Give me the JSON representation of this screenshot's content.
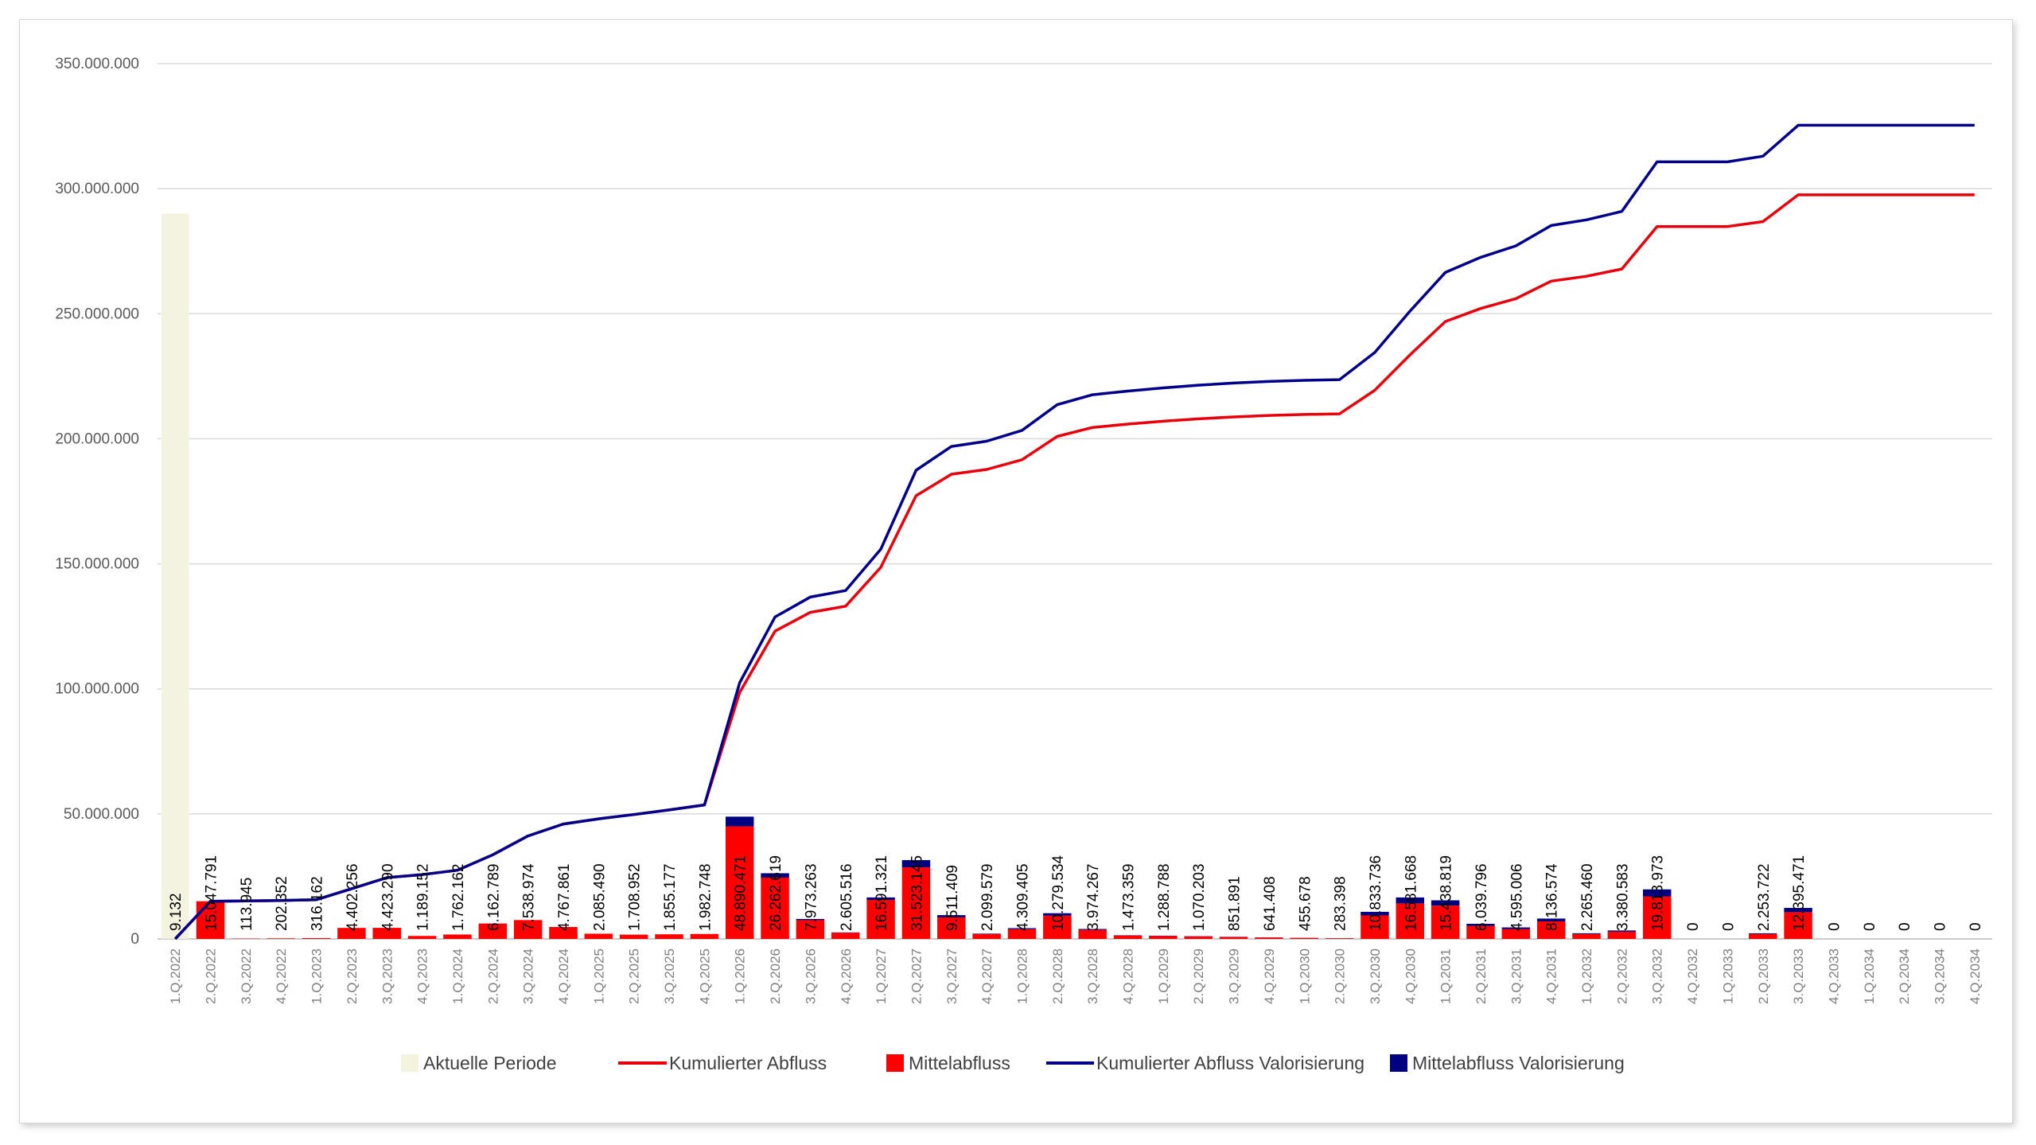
{
  "colors": {
    "period": "#f3f3df",
    "abfluss": "#ff0000",
    "valorisierung": "#000080",
    "cum_abfluss": "#e8000b",
    "cum_valorisierung": "#00008b",
    "grid": "#d9d9d9"
  },
  "chart_data": {
    "type": "bar",
    "title": "",
    "xlabel": "",
    "ylabel": "",
    "ylim": [
      0,
      350000000
    ],
    "yticks": [
      "0",
      "50.000.000",
      "100.000.000",
      "150.000.000",
      "200.000.000",
      "250.000.000",
      "300.000.000",
      "350.000.000"
    ],
    "grid": true,
    "legend_position": "bottom",
    "categories": [
      "1.Q.2022",
      "2.Q.2022",
      "3.Q.2022",
      "4.Q.2022",
      "1.Q.2023",
      "2.Q.2023",
      "3.Q.2023",
      "4.Q.2023",
      "1.Q.2024",
      "2.Q.2024",
      "3.Q.2024",
      "4.Q.2024",
      "1.Q.2025",
      "2.Q.2025",
      "3.Q.2025",
      "4.Q.2025",
      "1.Q.2026",
      "2.Q.2026",
      "3.Q.2026",
      "4.Q.2026",
      "1.Q.2027",
      "2.Q.2027",
      "3.Q.2027",
      "4.Q.2027",
      "1.Q.2028",
      "2.Q.2028",
      "3.Q.2028",
      "4.Q.2028",
      "1.Q.2029",
      "2.Q.2029",
      "3.Q.2029",
      "4.Q.2029",
      "1.Q.2030",
      "2.Q.2030",
      "3.Q.2030",
      "4.Q.2030",
      "1.Q.2031",
      "2.Q.2031",
      "3.Q.2031",
      "4.Q.2031",
      "1.Q.2032",
      "2.Q.2032",
      "3.Q.2032",
      "4.Q.2032",
      "1.Q.2033",
      "2.Q.2033",
      "3.Q.2033",
      "4.Q.2033",
      "1.Q.2034",
      "2.Q.2034",
      "3.Q.2034",
      "4.Q.2034"
    ],
    "data_labels": [
      "9.132",
      "15.047.791",
      "113.945",
      "202.352",
      "316.162",
      "4.402.256",
      "4.423.290",
      "1.189.152",
      "1.762.162",
      "6.162.789",
      "7.538.974",
      "4.767.861",
      "2.085.490",
      "1.708.952",
      "1.855.177",
      "1.982.748",
      "48.890.471",
      "26.262.619",
      "7.973.263",
      "2.605.516",
      "16.591.321",
      "31.523.145",
      "9.511.409",
      "2.099.579",
      "4.309.405",
      "10.279.534",
      "3.974.267",
      "1.473.359",
      "1.288.788",
      "1.070.203",
      "851.891",
      "641.408",
      "455.678",
      "283.398",
      "10.833.736",
      "16.581.668",
      "15.438.819",
      "6.039.796",
      "4.595.006",
      "8.136.574",
      "2.265.460",
      "3.380.583",
      "19.813.973",
      "0",
      "0",
      "2.253.722",
      "12.395.471",
      "0",
      "0",
      "0",
      "0",
      "0"
    ],
    "current_period": {
      "category": "1.Q.2022",
      "value": 290000000
    },
    "series": [
      {
        "name": "Mittelabfluss",
        "kind": "bar",
        "color": "#ff0000",
        "values": [
          9132,
          15047791,
          113945,
          202352,
          316162,
          4402256,
          4423290,
          1189152,
          1762162,
          6162789,
          7538974,
          4767861,
          2085490,
          1708952,
          1855177,
          1982748,
          45000000,
          24500000,
          7500000,
          2450000,
          15600000,
          28600000,
          8600000,
          1900000,
          3900000,
          9300000,
          3600000,
          1330000,
          1160000,
          960000,
          770000,
          580000,
          410000,
          255000,
          9400000,
          14200000,
          13300000,
          5200000,
          3950000,
          7000000,
          1950000,
          2900000,
          17000000,
          0,
          0,
          1950000,
          10700000,
          0,
          0,
          0,
          0,
          0
        ]
      },
      {
        "name": "Mittelabfluss Valorisierung",
        "kind": "bar",
        "color": "#000080",
        "values": [
          0,
          0,
          0,
          0,
          0,
          0,
          0,
          0,
          0,
          0,
          0,
          0,
          0,
          0,
          0,
          0,
          3890471,
          1762619,
          473263,
          155516,
          991321,
          2923145,
          911409,
          199579,
          409405,
          979534,
          374267,
          143359,
          128788,
          110203,
          81891,
          61408,
          45678,
          28398,
          1433736,
          2381668,
          2138819,
          839796,
          645006,
          1136574,
          315460,
          480583,
          2813973,
          0,
          0,
          303722,
          1695471,
          0,
          0,
          0,
          0,
          0
        ]
      },
      {
        "name": "Kumulierter Abfluss",
        "kind": "line",
        "color": "#e8000b",
        "values": [
          9132,
          15056923,
          15170868,
          15373220,
          15689382,
          20091638,
          24514928,
          25704080,
          27466242,
          33629031,
          41168005,
          45935866,
          48021356,
          49730308,
          51585485,
          53568233,
          98568233,
          123068233,
          130568233,
          133018233,
          148618233,
          177218233,
          185818233,
          187718233,
          191618233,
          200918233,
          204518233,
          205848233,
          207008233,
          207968233,
          208738233,
          209318233,
          209728233,
          209983233,
          219383233,
          233583233,
          246883233,
          252083233,
          256033233,
          263033233,
          264983233,
          267883233,
          284883233,
          284883233,
          284883233,
          286833233,
          297533233,
          297533233,
          297533233,
          297533233,
          297533233,
          297533233
        ]
      },
      {
        "name": "Kumulierter Abfluss Valorisierung",
        "kind": "line",
        "color": "#00008b",
        "values": [
          9132,
          15056923,
          15170868,
          15373220,
          15689382,
          20091638,
          24514928,
          25704080,
          27466242,
          33629031,
          41168005,
          45935866,
          48021356,
          49730308,
          51585485,
          53568233,
          102458704,
          128721323,
          136694586,
          139300102,
          155891423,
          187414568,
          196925977,
          199025556,
          203334961,
          213614495,
          217588762,
          219062121,
          220350909,
          221421112,
          222273003,
          222914411,
          223370089,
          223653487,
          234487223,
          251068891,
          266507710,
          272547506,
          277142512,
          285279086,
          287544546,
          290925129,
          310739102,
          310739102,
          310739102,
          312992824,
          325388295,
          325388295,
          325388295,
          325388295,
          325388295,
          325388295
        ]
      }
    ]
  },
  "legend": {
    "period": "Aktuelle Periode",
    "cum_abfluss": "Kumulierter Abfluss",
    "abfluss": "Mittelabfluss",
    "cum_valorisierung": "Kumulierter Abfluss Valorisierung",
    "valorisierung": "Mittelabfluss Valorisierung"
  }
}
